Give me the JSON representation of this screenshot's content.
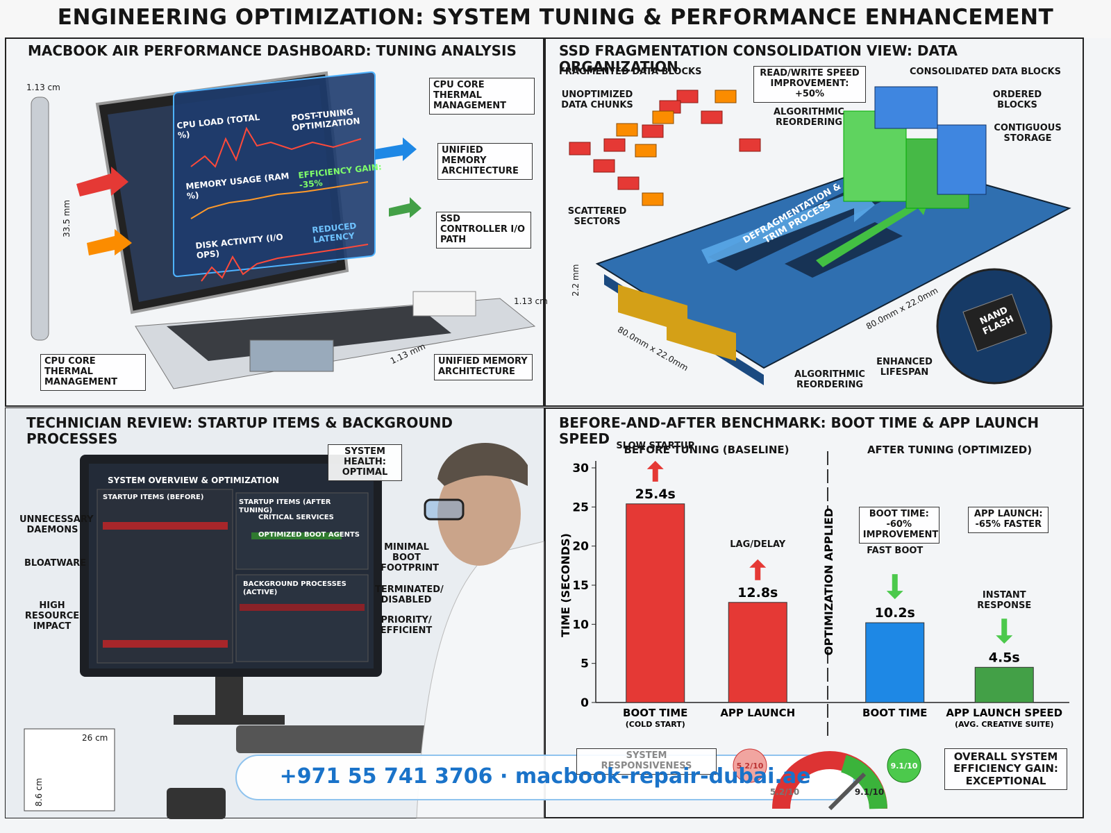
{
  "title": "ENGINEERING OPTIMIZATION: SYSTEM TUNING & PERFORMANCE ENHANCEMENT",
  "laptop_panel": {
    "title": "MACBOOK AIR PERFORMANCE DASHBOARD: TUNING ANALYSIS",
    "dashboard": [
      "CPU LOAD (TOTAL %)",
      "POST-TUNING OPTIMIZATION",
      "MEMORY USAGE (RAM %)",
      "EFFICIENCY GAIN: -35%",
      "DISK ACTIVITY (I/O OPS)",
      "REDUCED LATENCY"
    ],
    "callouts": [
      "CPU CORE THERMAL MANAGEMENT",
      "UNIFIED MEMORY ARCHITECTURE",
      "SSD CONTROLLER I/O PATH",
      "UNIFIED MEMORY ARCHITECTURE",
      "CPU CORE THERMAL MANAGEMENT"
    ],
    "dimensions": [
      "1.13 cm",
      "33.5 mm",
      "1.13 cm",
      "1.13 mm"
    ]
  },
  "ssd_panel": {
    "title": "SSD FRAGMENTATION CONSOLIDATION VIEW: DATA ORGANIZATION",
    "labels": [
      "FRAGMENTED DATA BLOCKS",
      "READ/WRITE SPEED IMPROVEMENT: +50%",
      "CONSOLIDATED DATA BLOCKS",
      "UNOPTIMIZED DATA CHUNKS",
      "ALGORITHMIC REORDERING",
      "ORDERED BLOCKS",
      "CONTIGUOUS STORAGE",
      "SCATTERED SECTORS",
      "DEFRAGMENTATION & TRIM PROCESS",
      "2.2 mm",
      "80.0mm x 22.0mm",
      "80.0mm x 22.0mm",
      "ALGORITHMIC REORDERING",
      "ENHANCED LIFESPAN",
      "NAND FLASH"
    ]
  },
  "technician_panel": {
    "title": "TECHNICIAN REVIEW: STARTUP ITEMS & BACKGROUND PROCESSES",
    "screen": [
      "SYSTEM OVERVIEW & OPTIMIZATION",
      "STARTUP ITEMS (BEFORE)",
      "STARTUP ITEMS (AFTER TUNING)",
      "CRITICAL SERVICES",
      "OPTIMIZED BOOT AGENTS",
      "BACKGROUND PROCESSES (ACTIVE)"
    ],
    "labels": [
      "SYSTEM HEALTH: OPTIMAL",
      "UNNECESSARY DAEMONS",
      "BLOATWARE",
      "HIGH RESOURCE IMPACT",
      "MINIMAL BOOT FOOTPRINT",
      "TERMINATED/ DISABLED",
      "PRIORITY/ EFFICIENT"
    ],
    "dimensions": [
      "26 cm",
      "8.6 cm"
    ]
  },
  "chart_data": {
    "type": "bar",
    "title": "BEFORE-AND-AFTER BENCHMARK: BOOT TIME & APP LAUNCH SPEED",
    "y_label": "TIME (SECONDS)",
    "ylim": [
      0,
      30
    ],
    "yticks": [
      0,
      5,
      10,
      15,
      20,
      25,
      30
    ],
    "divider": "OPTIMIZATION APPLIED",
    "groups": [
      {
        "label": "BEFORE TUNING (BASELINE)",
        "categories": [
          "BOOT TIME",
          "APP LAUNCH"
        ],
        "sublabels": [
          "(COLD START)",
          null
        ],
        "values": [
          25.4,
          12.8
        ],
        "value_labels": [
          "25.4s",
          "12.8s"
        ],
        "colors": [
          "#e53935",
          "#e53935"
        ],
        "notes": [
          "SLOW STARTUP",
          "LAG/DELAY"
        ]
      },
      {
        "label": "AFTER TUNING (OPTIMIZED)",
        "categories": [
          "BOOT TIME",
          "APP LAUNCH SPEED"
        ],
        "sublabels": [
          null,
          "(AVG. CREATIVE SUITE)"
        ],
        "values": [
          10.2,
          4.5
        ],
        "value_labels": [
          "10.2s",
          "4.5s"
        ],
        "colors": [
          "#1e88e5",
          "#43a047"
        ],
        "notes": [
          "FAST BOOT",
          "INSTANT RESPONSE"
        ],
        "callouts": [
          "BOOT TIME: -60% IMPROVEMENT",
          "APP LAUNCH: -65% FASTER"
        ]
      }
    ],
    "gauge": {
      "label": "SYSTEM RESPONSIVENESS",
      "readings": [
        "5.2/10",
        "5.2/10",
        "9.1/10",
        "9.1/10"
      ],
      "summary": "OVERALL SYSTEM EFFICIENCY GAIN: EXCEPTIONAL"
    }
  },
  "footer": {
    "contact": "+971 55 741 3706 · macbook-repair-dubai.ae"
  }
}
